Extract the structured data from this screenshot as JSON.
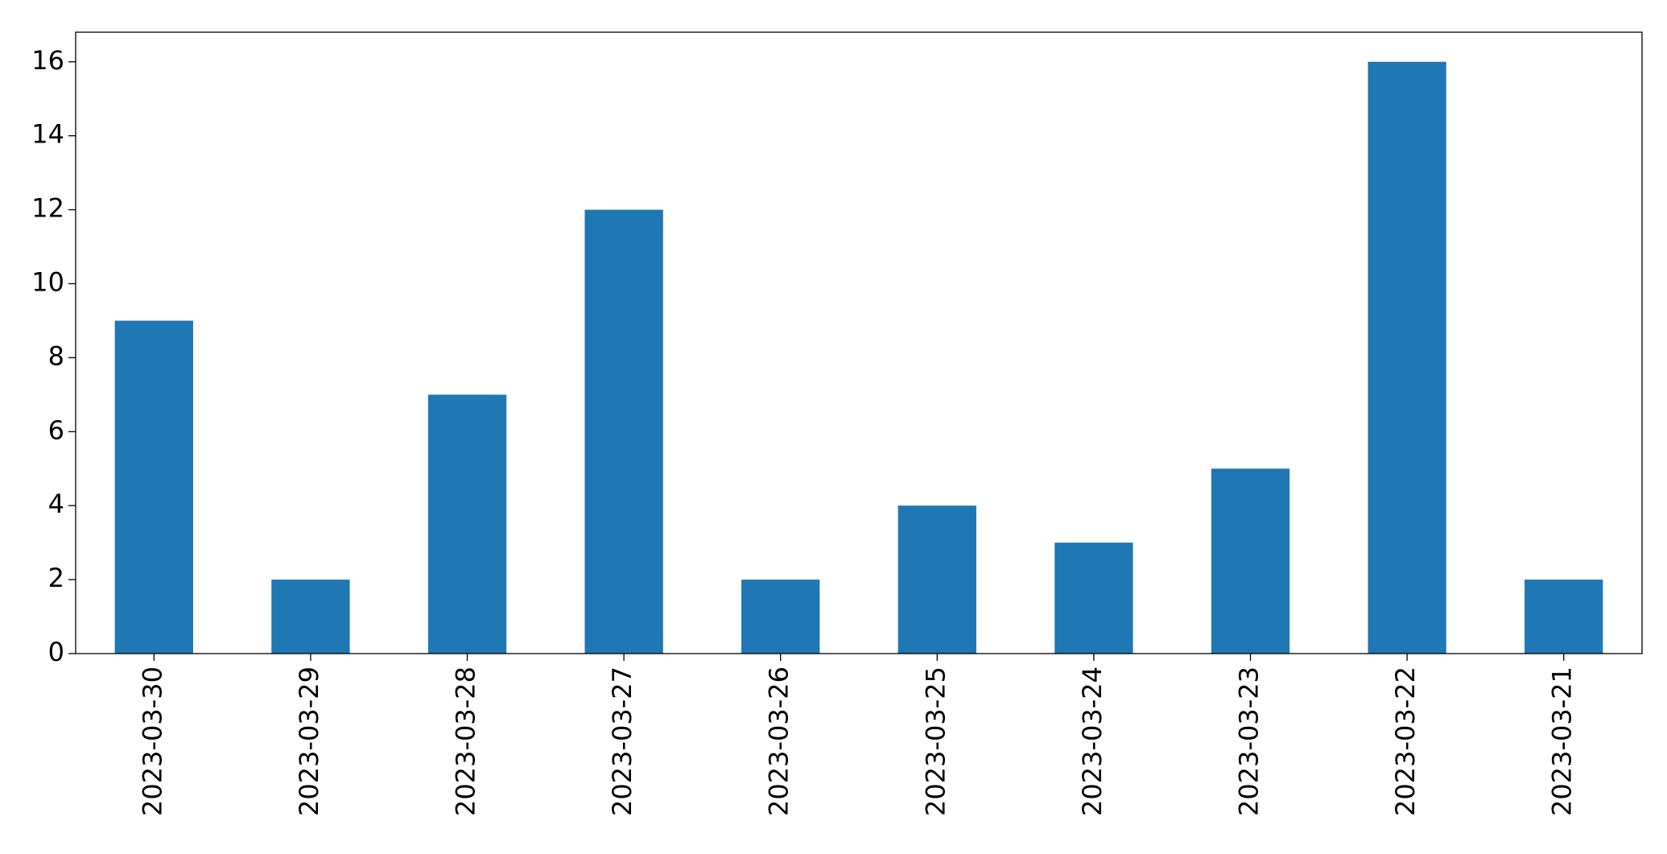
{
  "chart_data": {
    "type": "bar",
    "categories": [
      "2023-03-30",
      "2023-03-29",
      "2023-03-28",
      "2023-03-27",
      "2023-03-26",
      "2023-03-25",
      "2023-03-24",
      "2023-03-23",
      "2023-03-22",
      "2023-03-21"
    ],
    "values": [
      9,
      2,
      7,
      12,
      2,
      4,
      3,
      5,
      16,
      2
    ],
    "color": "#1f77b4",
    "ylim": [
      0,
      16.8
    ],
    "yticks": [
      0,
      2,
      4,
      6,
      8,
      10,
      12,
      14,
      16
    ],
    "grid": false
  }
}
